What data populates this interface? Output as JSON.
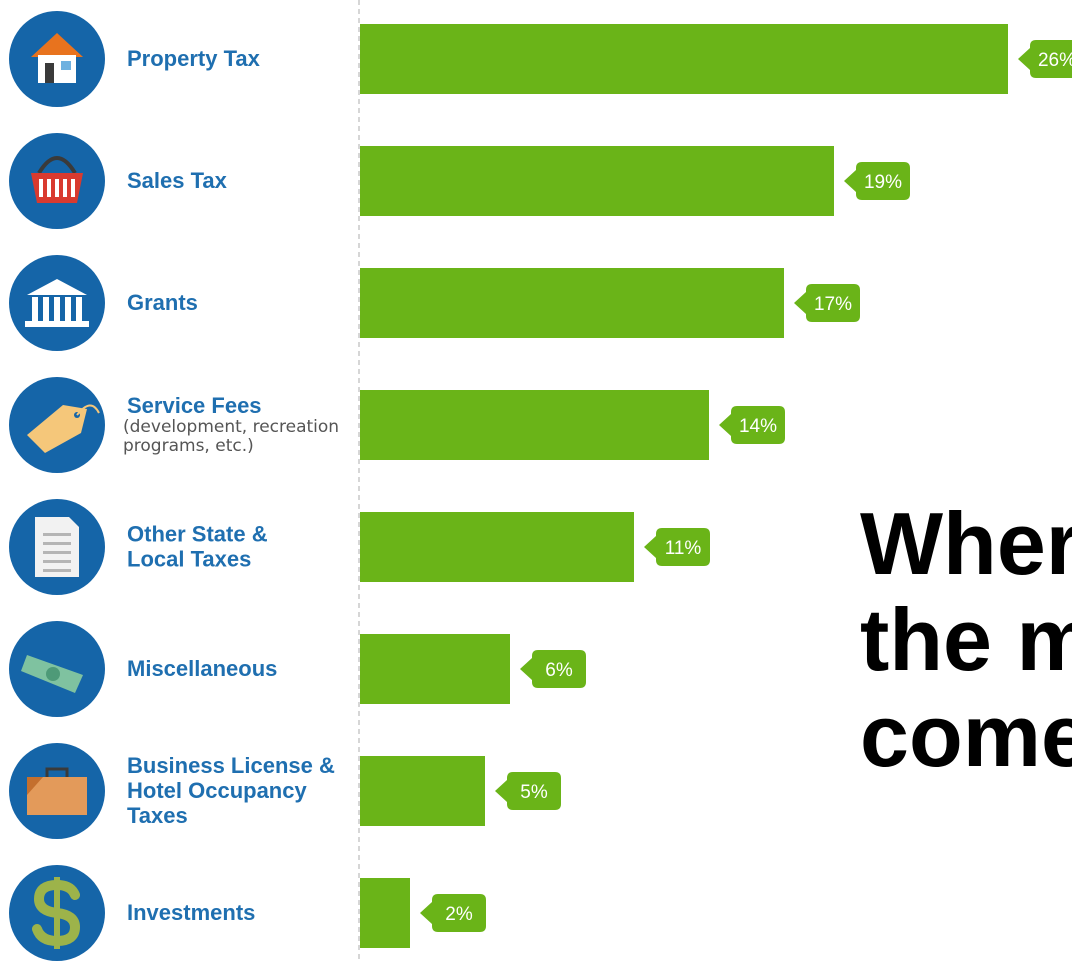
{
  "colors": {
    "bar": "#6ab418",
    "badge": "#6ab418",
    "icon_circle": "#1565a8",
    "label": "#1f6fb0",
    "overlay_text": "#000000"
  },
  "overlay": {
    "lines": [
      "Wher",
      "the m",
      "come"
    ]
  },
  "chart_data": {
    "type": "bar",
    "orientation": "horizontal",
    "xlim": [
      0,
      26
    ],
    "categories": [
      {
        "label_lines": [
          "Property Tax"
        ],
        "sub_lines": [],
        "value": 26,
        "value_label": "26%",
        "icon": "house-icon"
      },
      {
        "label_lines": [
          "Sales Tax"
        ],
        "sub_lines": [],
        "value": 19,
        "value_label": "19%",
        "icon": "shopping-basket-icon"
      },
      {
        "label_lines": [
          "Grants"
        ],
        "sub_lines": [],
        "value": 17,
        "value_label": "17%",
        "icon": "government-building-icon"
      },
      {
        "label_lines": [
          "Service Fees"
        ],
        "sub_lines": [
          "(development, recreation",
          "programs, etc.)"
        ],
        "value": 14,
        "value_label": "14%",
        "icon": "price-tag-icon"
      },
      {
        "label_lines": [
          "Other State &",
          "Local Taxes"
        ],
        "sub_lines": [],
        "value": 11,
        "value_label": "11%",
        "icon": "document-icon"
      },
      {
        "label_lines": [
          "Miscellaneous"
        ],
        "sub_lines": [],
        "value": 6,
        "value_label": "6%",
        "icon": "cash-bill-icon"
      },
      {
        "label_lines": [
          "Business License &",
          "Hotel Occupancy",
          "Taxes"
        ],
        "sub_lines": [],
        "value": 5,
        "value_label": "5%",
        "icon": "briefcase-icon"
      },
      {
        "label_lines": [
          "Investments"
        ],
        "sub_lines": [],
        "value": 2,
        "value_label": "2%",
        "icon": "dollar-sign-icon"
      }
    ]
  }
}
